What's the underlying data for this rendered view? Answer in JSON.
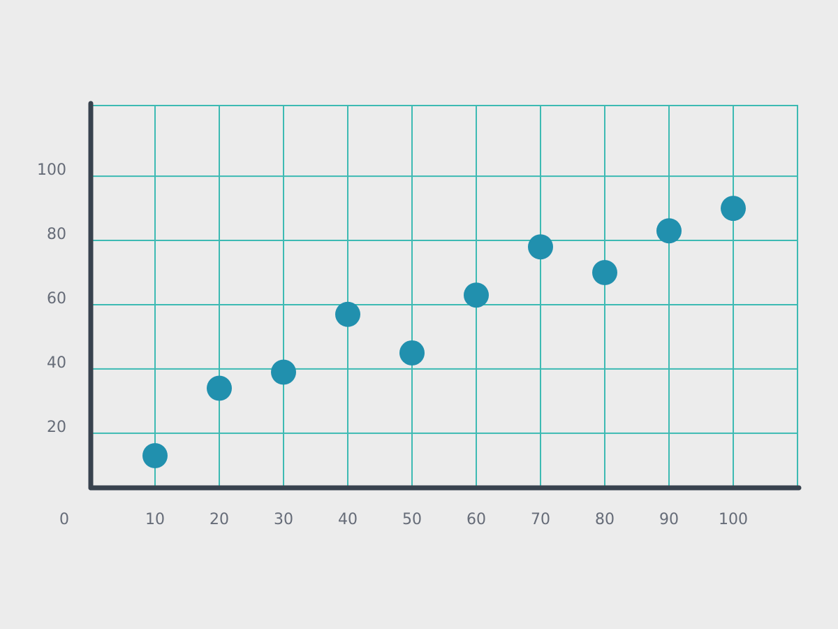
{
  "chart_data": {
    "type": "scatter",
    "x": [
      10,
      20,
      30,
      40,
      50,
      60,
      70,
      80,
      90,
      100
    ],
    "values": [
      13,
      34,
      39,
      57,
      45,
      63,
      78,
      70,
      83,
      90
    ],
    "color": "#2190ae",
    "xlim": [
      0,
      110
    ],
    "ylim": [
      3,
      122
    ],
    "xticks": [
      10,
      20,
      30,
      40,
      50,
      60,
      70,
      80,
      90,
      100
    ],
    "yticks": [
      20,
      40,
      60,
      80,
      100
    ],
    "origin_label": "0",
    "grid": true,
    "grid_color": "#3dbab3"
  }
}
